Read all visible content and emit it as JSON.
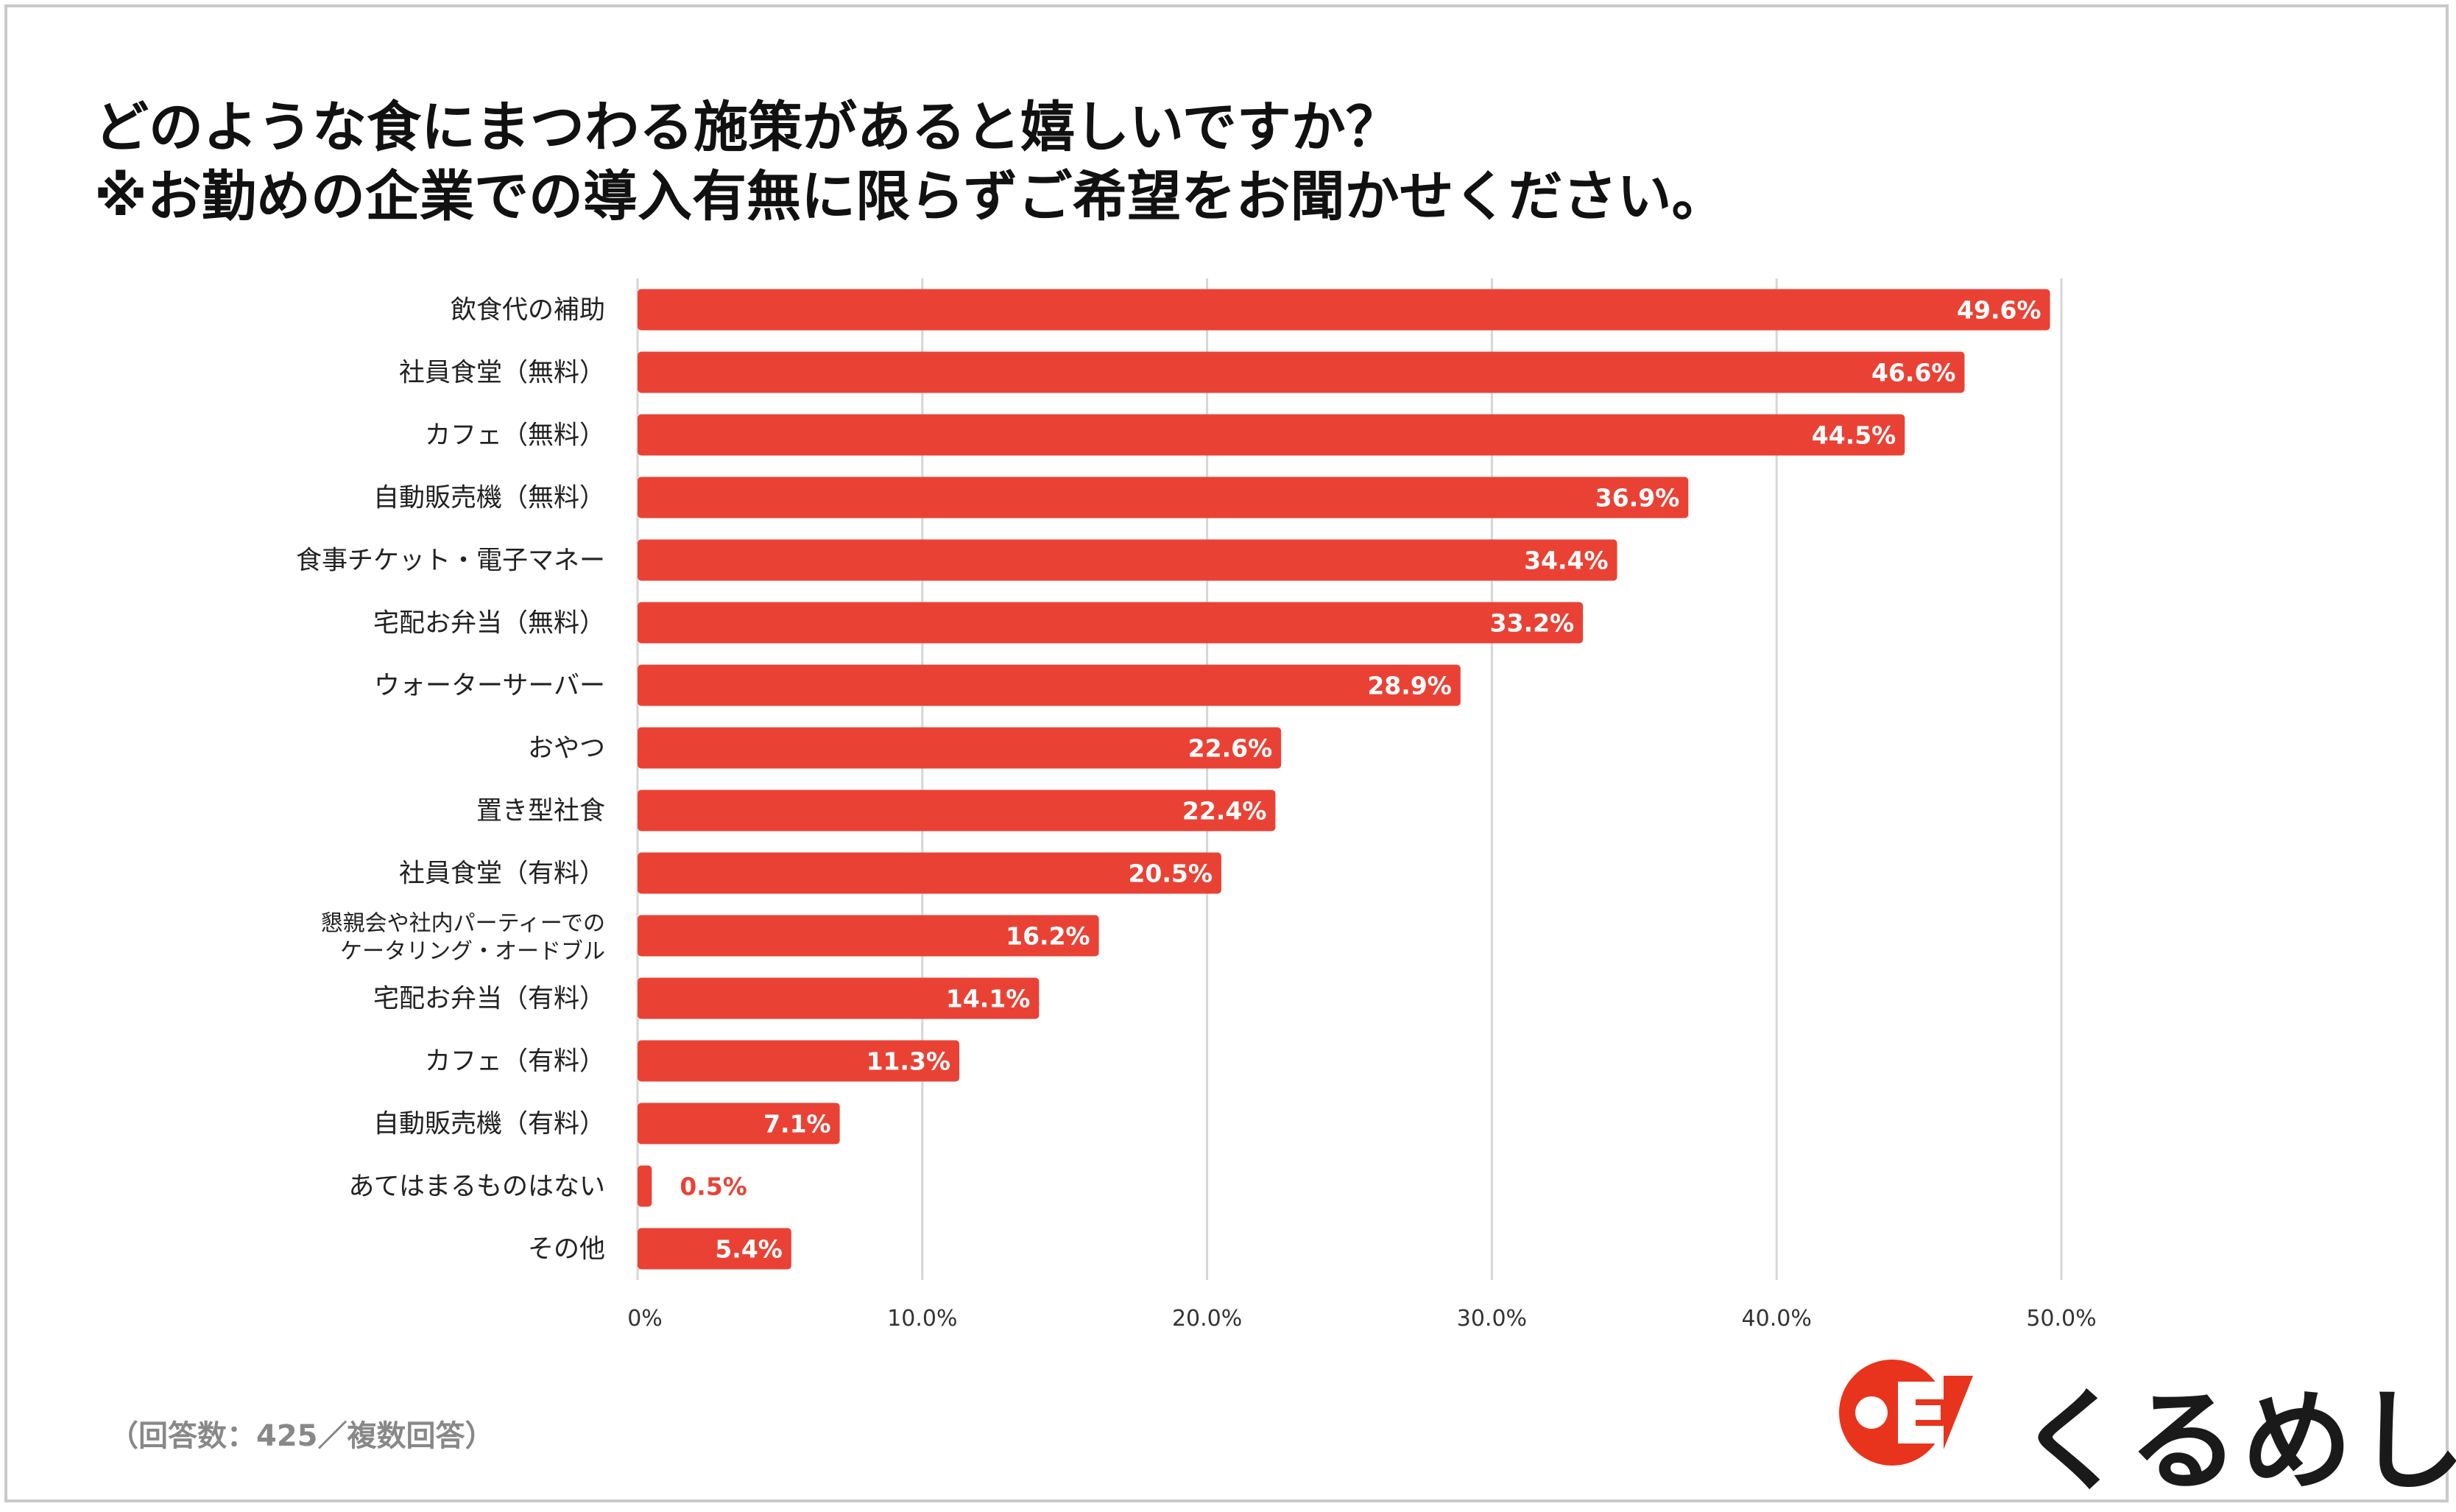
{
  "title": {
    "line1": "どのような食にまつわる施策があると嬉しいですか？",
    "line2": "※お勤めの企業での導入有無に限らずご希望をお聞かせください。"
  },
  "footnote": "（回答数：425／複数回答）",
  "logo": {
    "text": "くるめし",
    "color": "#e8341c",
    "icon": "kurumeshi-logo-mark"
  },
  "colors": {
    "bar": "#e94235",
    "grid": "#d6d6d6",
    "axis_text": "#333333",
    "outside_label": "#e94235"
  },
  "chart_data": {
    "type": "bar",
    "orientation": "horizontal",
    "categories": [
      "飲食代の補助",
      "社員食堂（無料）",
      "カフェ（無料）",
      "自動販売機（無料）",
      "食事チケット・電子マネー",
      "宅配お弁当（無料）",
      "ウォーターサーバー",
      "おやつ",
      "置き型社食",
      "社員食堂（有料）",
      "懇親会や社内パーティーでの\nケータリング・オードブル",
      "宅配お弁当（有料）",
      "カフェ（有料）",
      "自動販売機（有料）",
      "あてはまるものはない",
      "その他"
    ],
    "values": [
      49.6,
      46.6,
      44.5,
      36.9,
      34.4,
      33.2,
      28.9,
      22.6,
      22.4,
      20.5,
      16.2,
      14.1,
      11.3,
      7.1,
      0.5,
      5.4
    ],
    "value_labels": [
      "49.6%",
      "46.6%",
      "44.5%",
      "36.9%",
      "34.4%",
      "33.2%",
      "28.9%",
      "22.6%",
      "22.4%",
      "20.5%",
      "16.2%",
      "14.1%",
      "11.3%",
      "7.1%",
      "0.5%",
      "5.4%"
    ],
    "xlim": [
      0,
      50
    ],
    "xticks": [
      0,
      10,
      20,
      30,
      40,
      50
    ],
    "xtick_labels": [
      "0%",
      "10.0%",
      "20.0%",
      "30.0%",
      "40.0%",
      "50.0%"
    ],
    "grid": true,
    "legend": "none"
  }
}
